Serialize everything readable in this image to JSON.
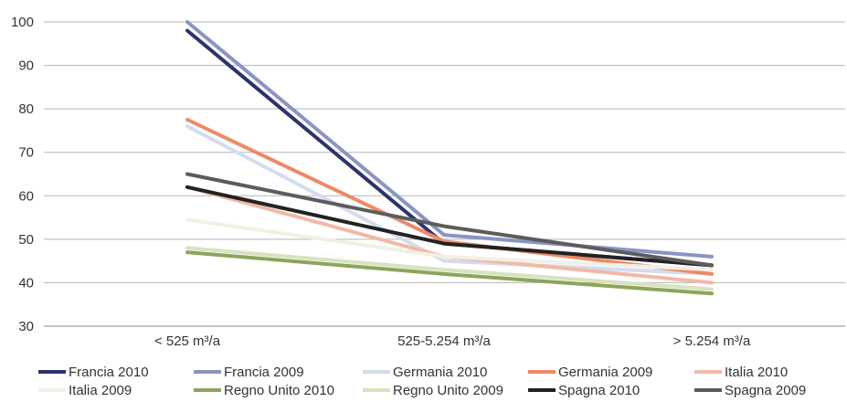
{
  "chart_data": {
    "type": "line",
    "categories": [
      "< 525 m³/a",
      "525-5.254 m³/a",
      "> 5.254 m³/a"
    ],
    "ylim": [
      30,
      100
    ],
    "yticks": [
      30,
      40,
      50,
      60,
      70,
      80,
      90,
      100
    ],
    "grid": true,
    "legend_position": "bottom",
    "series": [
      {
        "name": "Francia 2010",
        "color": "#2d3270",
        "values": [
          98,
          49,
          44
        ]
      },
      {
        "name": "Francia 2009",
        "color": "#8a94c4",
        "values": [
          100,
          51,
          46
        ]
      },
      {
        "name": "Germania 2010",
        "color": "#d3dcef",
        "values": [
          76,
          45,
          42
        ]
      },
      {
        "name": "Germania 2009",
        "color": "#ed8a64",
        "values": [
          77.5,
          49.5,
          42
        ]
      },
      {
        "name": "Italia 2010",
        "color": "#f2b8a6",
        "values": [
          62,
          46,
          40
        ]
      },
      {
        "name": "Italia 2009",
        "color": "#f1f0e4",
        "values": [
          54.5,
          46,
          43
        ]
      },
      {
        "name": "Regno Unito 2010",
        "color": "#8ca55a",
        "values": [
          47,
          42,
          37.5
        ]
      },
      {
        "name": "Regno Unito 2009",
        "color": "#d8e3bf",
        "values": [
          48,
          43,
          38.5
        ]
      },
      {
        "name": "Spagna 2010",
        "color": "#222222",
        "values": [
          62,
          49,
          44
        ]
      },
      {
        "name": "Spagna 2009",
        "color": "#5c5c5c",
        "values": [
          65,
          53,
          44
        ]
      }
    ]
  }
}
